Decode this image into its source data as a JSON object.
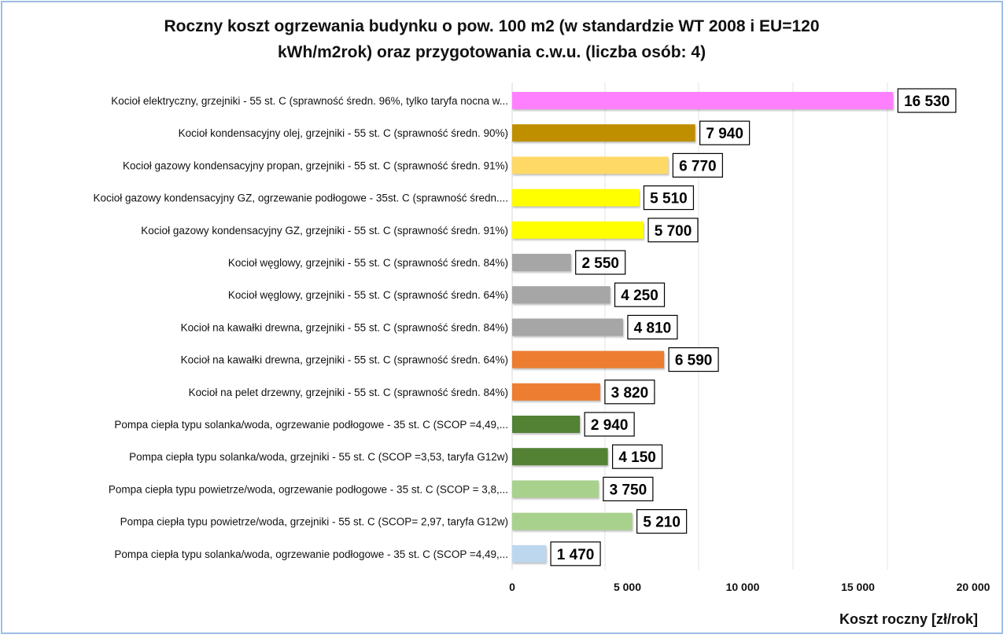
{
  "chart_data": {
    "type": "bar",
    "orientation": "horizontal",
    "title_line1": "Roczny koszt  ogrzewania budynku  o pow. 100 m2 (w standardzie  WT 2008 i EU=120",
    "title_line2": "kWh/m2rok) oraz przygotowania  c.w.u. (liczba osób: 4)",
    "xlabel": "Koszt roczny [zł/rok]",
    "ylabel": "",
    "xlim": [
      0,
      20000
    ],
    "xticks": [
      "0",
      "5 000",
      "10 000",
      "15 000",
      "20 000"
    ],
    "grid": true,
    "legend": "none",
    "categories": [
      "Kocioł  elektryczny,  grzejniki - 55 st. C  (sprawność średn. 96%, tylko taryfa nocna w...",
      "Kocioł  kondensacyjny olej,  grzejniki - 55 st. C  (sprawność średn. 90%)",
      "Kocioł gazowy kondensacyjny propan, grzejniki - 55 st. C  (sprawność średn. 91%)",
      "Kocioł gazowy kondensacyjny GZ, ogrzewanie podłogowe - 35st. C   (sprawność średn....",
      "Kocioł gazowy kondensacyjny GZ, grzejniki - 55 st. C   (sprawność średn. 91%)",
      "Kocioł węglowy,  grzejniki - 55 st. C  (sprawność średn. 84%)",
      "Kocioł węglowy,  grzejniki - 55 st. C  (sprawność średn. 64%)",
      "Kocioł na kawałki drewna, grzejniki - 55 st. C (sprawność średn. 84%)",
      "Kocioł na kawałki drewna, grzejniki - 55 st. C  (sprawność średn. 64%)",
      "Kocioł na pelet drzewny, grzejniki - 55 st. C (sprawność średn. 84%)",
      "Pompa ciepła typu solanka/woda, ogrzewanie podłogowe - 35 st. C  (SCOP =4,49,...",
      "Pompa ciepła typu solanka/woda, grzejniki - 55 st. C (SCOP =3,53, taryfa G12w)",
      "Pompa ciepła typu powietrze/woda, ogrzewanie podłogowe - 35 st. C (SCOP = 3,8,...",
      "Pompa ciepła typu powietrze/woda, grzejniki - 55 st. C (SCOP= 2,97, taryfa G12w)",
      "Pompa ciepła typu solanka/woda, ogrzewanie podłogowe - 35 st. C  (SCOP =4,49,..."
    ],
    "values": [
      16530,
      7940,
      6770,
      5510,
      5700,
      2550,
      4250,
      4810,
      6590,
      3820,
      2940,
      4150,
      3750,
      5210,
      1470
    ],
    "data_labels": [
      "16 530",
      "7 940",
      "6 770",
      "5 510",
      "5 700",
      "2 550",
      "4 250",
      "4 810",
      "6 590",
      "3 820",
      "2 940",
      "4 150",
      "3 750",
      "5 210",
      "1 470"
    ],
    "colors": [
      "#ff80ff",
      "#bf8f00",
      "#ffd966",
      "#ffff00",
      "#ffff00",
      "#a6a6a6",
      "#a6a6a6",
      "#a6a6a6",
      "#ed7d31",
      "#ed7d31",
      "#548235",
      "#548235",
      "#a9d18e",
      "#a9d18e",
      "#bdd7ee"
    ]
  }
}
